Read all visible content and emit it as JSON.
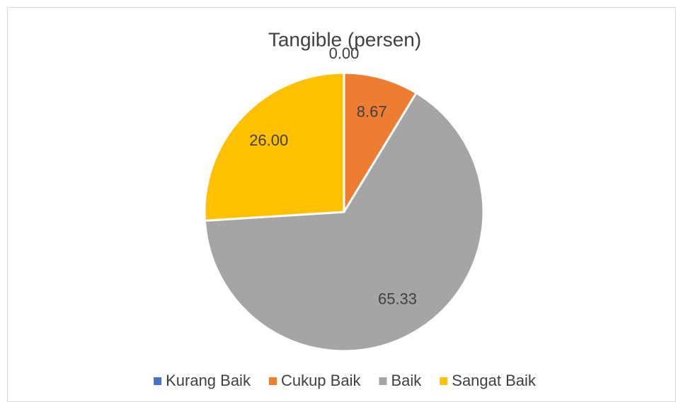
{
  "chart_data": {
    "type": "pie",
    "title": "Tangible (persen)",
    "categories": [
      "Kurang Baik",
      "Cukup Baik",
      "Baik",
      "Sangat Baik"
    ],
    "values": [
      0,
      8.67,
      65.33,
      26
    ],
    "value_labels": [
      "0.00",
      "8.67",
      "65.33",
      "26.00"
    ],
    "colors": [
      "#4472c4",
      "#ed7d31",
      "#a5a5a5",
      "#ffc000"
    ],
    "legend": "bottom"
  }
}
